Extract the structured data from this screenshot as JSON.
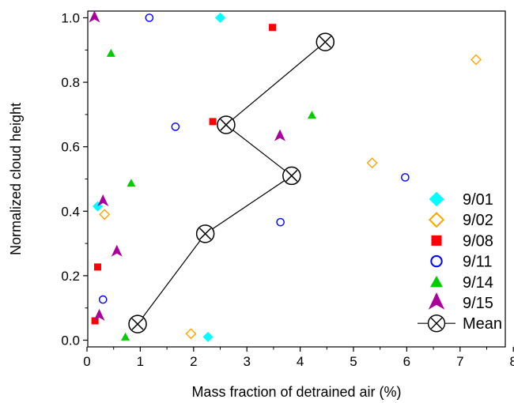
{
  "chart_data": {
    "type": "scatter",
    "title": "",
    "xlabel": "Mass fraction of detrained air (%)",
    "ylabel": "Normalized cloud height",
    "xlim": [
      0,
      8
    ],
    "ylim": [
      0,
      1.0
    ],
    "xticks": [
      "0",
      "1",
      "2",
      "3",
      "4",
      "5",
      "6",
      "7",
      "8"
    ],
    "yticks": [
      "0.0",
      "0.2",
      "0.4",
      "0.6",
      "0.8",
      "1.0"
    ],
    "grid": false,
    "legend_position": "bottom-right",
    "series": [
      {
        "name": "9/01",
        "marker": "diamond-filled",
        "color": "#00FFFF",
        "points": [
          [
            2.5,
            1.0
          ],
          [
            0.2,
            0.415
          ],
          [
            2.27,
            0.01
          ]
        ]
      },
      {
        "name": "9/02",
        "marker": "diamond-open",
        "color": "#FFA500",
        "points": [
          [
            7.3,
            0.87
          ],
          [
            5.35,
            0.55
          ],
          [
            0.33,
            0.39
          ],
          [
            1.95,
            0.02
          ]
        ]
      },
      {
        "name": "9/08",
        "marker": "square-filled",
        "color": "#FF0000",
        "points": [
          [
            3.48,
            0.97
          ],
          [
            2.36,
            0.678
          ],
          [
            0.2,
            0.227
          ],
          [
            0.15,
            0.06
          ]
        ]
      },
      {
        "name": "9/11",
        "marker": "circle-open",
        "color": "#0000FF",
        "points": [
          [
            1.17,
            1.0
          ],
          [
            1.66,
            0.662
          ],
          [
            5.97,
            0.505
          ],
          [
            3.63,
            0.366
          ],
          [
            0.3,
            0.126
          ]
        ]
      },
      {
        "name": "9/14",
        "marker": "triangle-filled",
        "color": "#00CC00",
        "points": [
          [
            0.45,
            0.89
          ],
          [
            4.22,
            0.698
          ],
          [
            0.83,
            0.487
          ],
          [
            0.72,
            0.01
          ]
        ]
      },
      {
        "name": "9/15",
        "marker": "arrowhead",
        "color": "#AA0099",
        "points": [
          [
            0.14,
            1.0
          ],
          [
            3.62,
            0.632
          ],
          [
            0.3,
            0.43
          ],
          [
            0.56,
            0.274
          ],
          [
            0.23,
            0.075
          ]
        ]
      },
      {
        "name": "Mean",
        "marker": "circle-x",
        "color": "#000000",
        "line": true,
        "points": [
          [
            4.47,
            0.925
          ],
          [
            2.61,
            0.668
          ],
          [
            3.84,
            0.51
          ],
          [
            2.22,
            0.33
          ],
          [
            0.95,
            0.05
          ]
        ]
      }
    ]
  }
}
